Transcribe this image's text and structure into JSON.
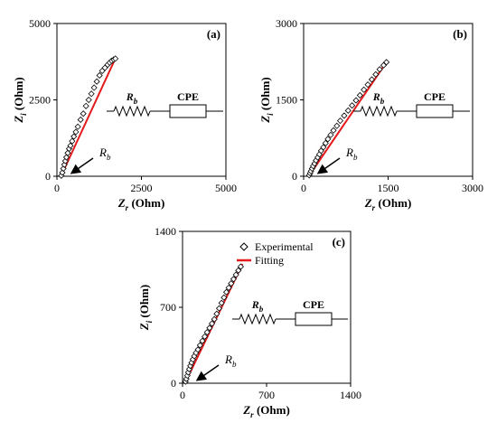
{
  "chart_data": [
    {
      "type": "scatter",
      "panel_label": "(a)",
      "xlabel": "Zr (Ohm)",
      "ylabel": "Zi (Ohm)",
      "xlim": [
        0,
        5000
      ],
      "ylim": [
        0,
        5000
      ],
      "xticks": [
        "0",
        "2500",
        "5000"
      ],
      "yticks": [
        "0",
        "2500",
        "5000"
      ],
      "annotation": "Rb",
      "circuit": {
        "resistor_label": "Rb",
        "element_label": "CPE"
      },
      "legend": null,
      "series": [
        {
          "name": "Experimental",
          "marker": "diamond",
          "x": [
            130,
            160,
            190,
            220,
            250,
            280,
            320,
            360,
            400,
            450,
            500,
            560,
            620,
            700,
            780,
            860,
            940,
            1020,
            1100,
            1180,
            1260,
            1340,
            1420,
            1500,
            1560,
            1620,
            1680,
            1730
          ],
          "y": [
            20,
            120,
            250,
            380,
            500,
            620,
            760,
            900,
            1000,
            1150,
            1300,
            1450,
            1620,
            1850,
            2050,
            2300,
            2500,
            2700,
            2900,
            3100,
            3300,
            3450,
            3550,
            3650,
            3720,
            3780,
            3820,
            3850
          ]
        },
        {
          "name": "Fitting",
          "type": "line",
          "color": "#e41a1c",
          "x": [
            120,
            1740
          ],
          "y": [
            0,
            3880
          ]
        }
      ]
    },
    {
      "type": "scatter",
      "panel_label": "(b)",
      "xlabel": "Zr (Ohm)",
      "ylabel": "Zi (Ohm)",
      "xlim": [
        0,
        3000
      ],
      "ylim": [
        0,
        3000
      ],
      "xticks": [
        "0",
        "1500",
        "3000"
      ],
      "yticks": [
        "0",
        "1500",
        "3000"
      ],
      "annotation": "Rb",
      "circuit": {
        "resistor_label": "Rb",
        "element_label": "CPE"
      },
      "legend": null,
      "series": [
        {
          "name": "Experimental",
          "marker": "diamond",
          "x": [
            100,
            115,
            130,
            150,
            170,
            195,
            220,
            250,
            280,
            310,
            350,
            390,
            430,
            480,
            530,
            590,
            650,
            720,
            790,
            860,
            930,
            1000,
            1070,
            1140,
            1210,
            1280,
            1350,
            1420,
            1470
          ],
          "y": [
            20,
            60,
            100,
            150,
            200,
            250,
            310,
            370,
            430,
            500,
            570,
            650,
            730,
            810,
            900,
            990,
            1090,
            1190,
            1290,
            1390,
            1490,
            1590,
            1700,
            1800,
            1900,
            2000,
            2100,
            2180,
            2240
          ]
        },
        {
          "name": "Fitting",
          "type": "line",
          "color": "#e41a1c",
          "x": [
            90,
            1490
          ],
          "y": [
            0,
            2270
          ]
        }
      ]
    },
    {
      "type": "scatter",
      "panel_label": "(c)",
      "xlabel": "Zr (Ohm)",
      "ylabel": "Zi (Ohm)",
      "xlim": [
        0,
        1400
      ],
      "ylim": [
        0,
        1400
      ],
      "xticks": [
        "0",
        "700",
        "1400"
      ],
      "yticks": [
        "0",
        "700",
        "1400"
      ],
      "annotation": "Rb",
      "circuit": {
        "resistor_label": "Rb",
        "element_label": "CPE"
      },
      "legend": [
        "Experimental",
        "Fitting"
      ],
      "series": [
        {
          "name": "Experimental",
          "marker": "diamond",
          "x": [
            25,
            32,
            40,
            48,
            56,
            65,
            75,
            86,
            98,
            112,
            128,
            146,
            165,
            185,
            205,
            225,
            245,
            265,
            285,
            305,
            325,
            345,
            365,
            385,
            405,
            425,
            445,
            465,
            485
          ],
          "y": [
            15,
            40,
            70,
            100,
            130,
            160,
            190,
            220,
            250,
            280,
            310,
            350,
            390,
            430,
            470,
            510,
            550,
            590,
            640,
            690,
            740,
            790,
            840,
            880,
            920,
            960,
            1000,
            1040,
            1075
          ]
        },
        {
          "name": "Fitting",
          "type": "line",
          "color": "#e41a1c",
          "x": [
            20,
            500
          ],
          "y": [
            0,
            1100
          ]
        }
      ]
    }
  ]
}
